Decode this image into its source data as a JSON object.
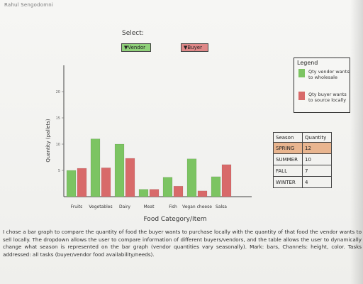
{
  "author": "Rahul Sengodomni",
  "select": {
    "label": "Select:",
    "vendor_label": "▼Vendor",
    "buyer_label": "▼Buyer"
  },
  "legend": {
    "title": "Legend",
    "items": [
      {
        "label": "Qty vendor wants to wholesale",
        "color": "#7cc462"
      },
      {
        "label": "Qty buyer wants to source locally",
        "color": "#d86a6a"
      }
    ]
  },
  "season_table": {
    "headers": [
      "Season",
      "Quantity"
    ],
    "rows": [
      {
        "season": "SPRING",
        "quantity": "12"
      },
      {
        "season": "SUMMER",
        "quantity": "10"
      },
      {
        "season": "FALL",
        "quantity": "7"
      },
      {
        "season": "WINTER",
        "quantity": "4"
      }
    ],
    "highlight_color": "#e9b58f"
  },
  "caption": "I chose a bar graph to compare the quantity of food the buyer wants to purchase locally with the quantity of that food the vendor wants to sell locally. The dropdown allows the user to compare information of different buyers/vendors, and the table allows the user to dynamically change what season is represented on the bar graph (vendor quantities vary seasonally). Mark: bars, Channels: height, color. Tasks addressed: all tasks (buyer/vendor food availability/needs).",
  "chart_data": {
    "type": "bar",
    "categories": [
      "Fruits",
      "Vegetables",
      "Dairy",
      "Meat",
      "Fish",
      "Vegan cheese",
      "Salsa"
    ],
    "series": [
      {
        "name": "Qty vendor wants to wholesale",
        "color": "#7cc462",
        "values": [
          5,
          11,
          10,
          1.4,
          3.7,
          7.2,
          3.8
        ]
      },
      {
        "name": "Qty buyer wants to source locally",
        "color": "#d86a6a",
        "values": [
          5.4,
          5.5,
          7.3,
          1.4,
          2.0,
          1.1,
          6.1
        ]
      }
    ],
    "y_ticks": [
      5,
      10,
      15,
      20
    ],
    "ylim": [
      0,
      25
    ],
    "xlabel": "Food Category/Item",
    "ylabel": "Quantity (pallets)",
    "grid": false,
    "legend_position": "right"
  }
}
